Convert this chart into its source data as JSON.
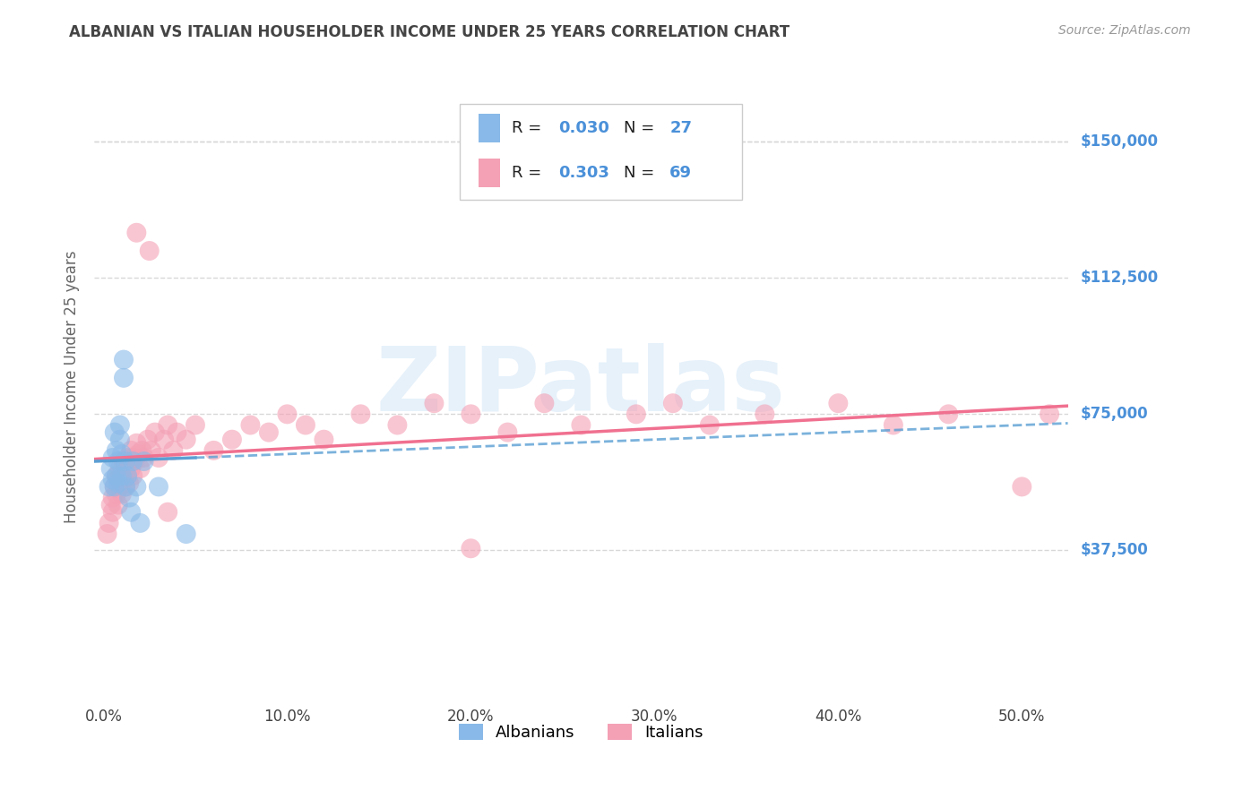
{
  "title": "ALBANIAN VS ITALIAN HOUSEHOLDER INCOME UNDER 25 YEARS CORRELATION CHART",
  "source": "Source: ZipAtlas.com",
  "ylabel": "Householder Income Under 25 years",
  "xlabel_ticks": [
    "0.0%",
    "10.0%",
    "20.0%",
    "30.0%",
    "40.0%",
    "50.0%"
  ],
  "xlabel_vals": [
    0.0,
    0.1,
    0.2,
    0.3,
    0.4,
    0.5
  ],
  "ytick_labels": [
    "$37,500",
    "$75,000",
    "$112,500",
    "$150,000"
  ],
  "ytick_vals": [
    37500,
    75000,
    112500,
    150000
  ],
  "ylim": [
    -5000,
    170000
  ],
  "xlim": [
    -0.005,
    0.525
  ],
  "albanian_color": "#89b9e8",
  "italian_color": "#f4a0b5",
  "albanian_line_color": "#5a9fd4",
  "italian_line_color": "#f07090",
  "watermark": "ZIPatlas",
  "background_color": "#ffffff",
  "grid_color": "#d8d8d8",
  "title_color": "#444444",
  "axis_label_color": "#666666",
  "ytick_color": "#4a90d9",
  "xtick_color": "#444444",
  "albanian_x": [
    0.003,
    0.004,
    0.005,
    0.005,
    0.006,
    0.006,
    0.007,
    0.007,
    0.008,
    0.008,
    0.009,
    0.009,
    0.01,
    0.01,
    0.011,
    0.011,
    0.012,
    0.012,
    0.013,
    0.014,
    0.015,
    0.016,
    0.018,
    0.02,
    0.022,
    0.03,
    0.045
  ],
  "albanian_y": [
    55000,
    60000,
    57000,
    63000,
    55000,
    70000,
    65000,
    58000,
    62000,
    56000,
    68000,
    72000,
    64000,
    58000,
    85000,
    90000,
    62000,
    55000,
    58000,
    52000,
    48000,
    62000,
    55000,
    45000,
    62000,
    55000,
    42000
  ],
  "italian_x": [
    0.002,
    0.003,
    0.004,
    0.005,
    0.005,
    0.006,
    0.007,
    0.007,
    0.008,
    0.008,
    0.009,
    0.009,
    0.01,
    0.01,
    0.011,
    0.011,
    0.012,
    0.012,
    0.013,
    0.013,
    0.014,
    0.014,
    0.015,
    0.015,
    0.016,
    0.016,
    0.017,
    0.018,
    0.019,
    0.02,
    0.021,
    0.022,
    0.024,
    0.026,
    0.028,
    0.03,
    0.033,
    0.035,
    0.038,
    0.04,
    0.045,
    0.05,
    0.06,
    0.07,
    0.08,
    0.09,
    0.1,
    0.11,
    0.12,
    0.14,
    0.16,
    0.18,
    0.2,
    0.22,
    0.24,
    0.26,
    0.29,
    0.31,
    0.33,
    0.36,
    0.4,
    0.43,
    0.46,
    0.5,
    0.515,
    0.018,
    0.025,
    0.035,
    0.2
  ],
  "italian_y": [
    42000,
    45000,
    50000,
    52000,
    48000,
    55000,
    53000,
    58000,
    50000,
    57000,
    55000,
    60000,
    58000,
    53000,
    62000,
    57000,
    60000,
    55000,
    63000,
    58000,
    62000,
    56000,
    65000,
    60000,
    58000,
    63000,
    62000,
    67000,
    64000,
    60000,
    65000,
    63000,
    68000,
    65000,
    70000,
    63000,
    68000,
    72000,
    65000,
    70000,
    68000,
    72000,
    65000,
    68000,
    72000,
    70000,
    75000,
    72000,
    68000,
    75000,
    72000,
    78000,
    75000,
    70000,
    78000,
    72000,
    75000,
    78000,
    72000,
    75000,
    78000,
    72000,
    75000,
    55000,
    75000,
    125000,
    120000,
    48000,
    38000
  ]
}
